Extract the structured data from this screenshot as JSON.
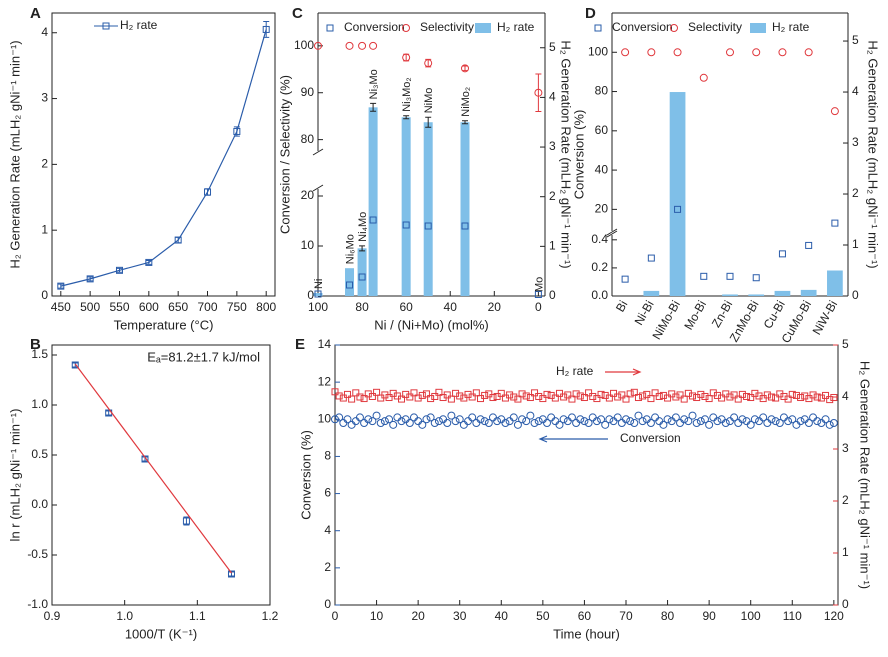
{
  "chart_data": [
    {
      "type": "line",
      "panel": "A",
      "xlabel": "Temperature (°C)",
      "ylabel": "H₂ Generation Rate (mLH₂ gNi⁻¹ min⁻¹)",
      "x": [
        450,
        500,
        550,
        600,
        650,
        700,
        750,
        800
      ],
      "series": [
        {
          "name": "H₂ rate",
          "color": "#2a5caa",
          "mark": "square",
          "line": true,
          "values": [
            0.15,
            0.26,
            0.39,
            0.51,
            0.85,
            1.58,
            2.5,
            4.05
          ],
          "errors": [
            0.03,
            0.03,
            0.03,
            0.03,
            0.04,
            0.05,
            0.07,
            0.12
          ]
        }
      ],
      "xlim": [
        435,
        815
      ],
      "xticks": [
        450,
        500,
        550,
        600,
        650,
        700,
        750,
        800
      ],
      "ylim": [
        0,
        4.3
      ],
      "yticks": [
        0,
        1,
        2,
        3,
        4
      ]
    },
    {
      "type": "scatter",
      "panel": "B",
      "xlabel": "1000/T (K⁻¹)",
      "ylabel": "ln r (mLH₂ gNi⁻¹ min⁻¹)",
      "annotation": "Eₐ=81.2±1.7 kJ/mol",
      "x": [
        0.932,
        0.978,
        1.028,
        1.085,
        1.147
      ],
      "series": [
        {
          "color": "#2a5caa",
          "mark": "square",
          "values": [
            1.4,
            0.92,
            0.46,
            -0.16,
            -0.69
          ],
          "errors": [
            0.02,
            0.02,
            0.02,
            0.04,
            0.02
          ]
        }
      ],
      "fit": {
        "color": "#e0393e",
        "x": [
          0.932,
          1.147
        ],
        "values": [
          1.41,
          -0.68
        ]
      },
      "xlim": [
        0.9,
        1.2
      ],
      "xticks": [
        0.9,
        {
          "value": 1.0,
          "label": "1.0"
        },
        1.1,
        {
          "value": 1.2,
          "label": "1.2"
        }
      ],
      "ylim": [
        -1.0,
        1.6
      ],
      "yticks": [
        {
          "value": -1.0,
          "label": "-1.0"
        },
        -0.5,
        {
          "value": 0.0,
          "label": "0.0"
        },
        0.5,
        {
          "value": 1.0,
          "label": "1.0"
        },
        1.5
      ]
    },
    {
      "type": "bar",
      "panel": "C",
      "xlabel": "Ni / (Ni+Mo) (mol%)",
      "ylabel": "Conversion / Selectivity (%)",
      "y2label": "H₂ Generation Rate (mLH₂ gNi⁻¹ min⁻¹)",
      "x": [
        100,
        85.7,
        80,
        75,
        60,
        50,
        33.3,
        0
      ],
      "point_labels": [
        "Ni",
        "Ni₆Mo",
        "Ni₄Mo",
        "Ni₃Mo",
        "Ni₃Mo₂",
        "NiMo",
        "NiMo₂",
        "Mo"
      ],
      "series": [
        {
          "name": "Conversion",
          "color": "#2a5caa",
          "mark": "square",
          "values": [
            0.4,
            2.2,
            3.8,
            15.2,
            14.2,
            14.0,
            14.0,
            0.3
          ]
        },
        {
          "name": "Selectivity",
          "color": "#e0393e",
          "mark": "circle",
          "values": [
            100,
            100,
            100,
            100,
            97.5,
            96.3,
            95.2,
            90
          ],
          "errors": [
            null,
            null,
            null,
            null,
            0.7,
            0.8,
            0.5,
            4
          ]
        },
        {
          "name": "H₂ rate",
          "color": "#7fbfe8",
          "mark": "bar",
          "axis": "y2",
          "values": [
            0.06,
            0.56,
            0.96,
            3.8,
            3.6,
            3.5,
            3.5,
            0
          ],
          "errors": [
            null,
            null,
            0.05,
            0.08,
            0.03,
            0.1,
            0.03,
            null
          ]
        }
      ],
      "xlim": [
        100,
        -3
      ],
      "xticks": [
        100,
        80,
        60,
        40,
        20,
        0
      ],
      "ylim": [
        0,
        107
      ],
      "axis_break": [
        21,
        78
      ],
      "yticks": [
        0,
        10,
        20,
        80,
        90,
        100
      ],
      "y2lim": [
        0,
        5.7
      ],
      "y2ticks": [
        0,
        1,
        2,
        3,
        4,
        5
      ]
    },
    {
      "type": "bar",
      "panel": "D",
      "ylabel": "Conversion  (%)",
      "y2label": "H₂ Generation Rate (mLH₂ gNi⁻¹ min⁻¹)",
      "categories": [
        "Bi",
        "Ni-Bi",
        "NiMo-Bi",
        "Mo-Bi",
        "Zn-Bi",
        "ZnMo-Bi",
        "Cu-Bi",
        "CuMo-Bi",
        "NiW-Bi"
      ],
      "series": [
        {
          "name": "Conversion",
          "color": "#2a5caa",
          "mark": "square",
          "values": [
            0.12,
            0.27,
            20,
            0.14,
            0.14,
            0.13,
            0.3,
            0.36,
            13
          ]
        },
        {
          "name": "Selectivity",
          "color": "#e0393e",
          "mark": "circle",
          "values": [
            100,
            100,
            100,
            87,
            100,
            100,
            100,
            100,
            70
          ]
        },
        {
          "name": "H₂ rate",
          "color": "#7fbfe8",
          "mark": "bar",
          "axis": "y2",
          "values": [
            0,
            0.1,
            4.0,
            0,
            0.03,
            0.03,
            0.1,
            0.12,
            0.5
          ]
        }
      ],
      "ylim": [
        0,
        120
      ],
      "axis_break": [
        0.42,
        10
      ],
      "yticks": [
        {
          "value": 0.0,
          "label": "0.0"
        },
        0.2,
        0.4,
        20,
        40,
        60,
        80,
        100
      ],
      "y2lim": [
        0,
        5.55
      ],
      "y2ticks": [
        0,
        1,
        2,
        3,
        4,
        5
      ]
    },
    {
      "type": "line",
      "panel": "E",
      "xlabel": "Time (hour)",
      "ylabel": "Conversion (%)",
      "y2label": "H₂ Generation Rate (mLH₂ gNi⁻¹ min⁻¹)",
      "color_axes": true,
      "x": [
        0,
        1,
        2,
        3,
        4,
        5,
        6,
        7,
        8,
        9,
        10,
        11,
        12,
        13,
        14,
        15,
        16,
        17,
        18,
        19,
        20,
        21,
        22,
        23,
        24,
        25,
        26,
        27,
        28,
        29,
        30,
        31,
        32,
        33,
        34,
        35,
        36,
        37,
        38,
        39,
        40,
        41,
        42,
        43,
        44,
        45,
        46,
        47,
        48,
        49,
        50,
        51,
        52,
        53,
        54,
        55,
        56,
        57,
        58,
        59,
        60,
        61,
        62,
        63,
        64,
        65,
        66,
        67,
        68,
        69,
        70,
        71,
        72,
        73,
        74,
        75,
        76,
        77,
        78,
        79,
        80,
        81,
        82,
        83,
        84,
        85,
        86,
        87,
        88,
        89,
        90,
        91,
        92,
        93,
        94,
        95,
        96,
        97,
        98,
        99,
        100,
        101,
        102,
        103,
        104,
        105,
        106,
        107,
        108,
        109,
        110,
        111,
        112,
        113,
        114,
        115,
        116,
        117,
        118,
        119,
        120
      ],
      "series": [
        {
          "name": "H₂ rate",
          "color": "#e0393e",
          "mark": "square",
          "axis": "y2",
          "values": [
            4.1,
            4.02,
            3.98,
            4.05,
            3.96,
            4.08,
            4.0,
            3.97,
            4.06,
            4.01,
            4.09,
            3.98,
            4.04,
            3.99,
            4.07,
            4.02,
            3.96,
            4.05,
            4.0,
            4.08,
            3.98,
            4.03,
            4.06,
            3.97,
            4.01,
            4.09,
            3.99,
            4.04,
            3.96,
            4.07,
            4.02,
            3.98,
            4.05,
            4.0,
            4.08,
            3.97,
            4.03,
            4.06,
            3.99,
            4.01,
            4.07,
            3.98,
            4.04,
            4.0,
            3.96,
            4.06,
            4.02,
            3.99,
            4.08,
            4.01,
            3.97,
            4.05,
            4.03,
            3.98,
            4.07,
            4.0,
            4.04,
            3.96,
            4.06,
            4.02,
            3.99,
            4.08,
            4.01,
            3.97,
            4.05,
            4.03,
            3.98,
            4.07,
            4.0,
            4.04,
            3.96,
            4.06,
            4.09,
            3.99,
            4.02,
            4.05,
            3.97,
            4.08,
            4.01,
            4.03,
            3.98,
            4.06,
            4.0,
            4.04,
            3.96,
            4.07,
            4.02,
            3.99,
            4.05,
            4.01,
            3.97,
            4.08,
            4.03,
            3.98,
            4.06,
            4.0,
            4.04,
            3.96,
            4.05,
            4.01,
            3.99,
            4.07,
            4.02,
            3.97,
            4.04,
            4.0,
            3.98,
            4.06,
            4.01,
            3.96,
            4.05,
            4.03,
            3.99,
            4.02,
            3.97,
            4.04,
            4.0,
            3.98,
            4.03,
            3.95,
            3.99
          ]
        },
        {
          "name": "Conversion",
          "color": "#2a5caa",
          "mark": "circle",
          "values": [
            10.0,
            10.1,
            9.8,
            10.0,
            9.7,
            9.9,
            10.1,
            9.8,
            10.0,
            9.9,
            10.2,
            9.8,
            9.9,
            10.0,
            9.7,
            10.1,
            9.9,
            10.0,
            9.8,
            10.1,
            9.9,
            9.7,
            10.0,
            10.1,
            9.8,
            9.9,
            10.0,
            9.8,
            10.2,
            9.9,
            10.0,
            9.7,
            9.9,
            10.1,
            9.8,
            10.0,
            9.9,
            9.8,
            10.1,
            9.9,
            10.0,
            9.8,
            9.9,
            10.1,
            9.7,
            10.0,
            9.9,
            10.2,
            9.8,
            9.9,
            10.0,
            9.8,
            10.1,
            9.9,
            9.7,
            10.0,
            9.9,
            10.1,
            9.8,
            10.0,
            9.9,
            9.8,
            10.1,
            9.9,
            10.0,
            9.7,
            10.0,
            9.9,
            10.1,
            9.8,
            10.0,
            9.9,
            9.8,
            10.2,
            9.9,
            10.0,
            9.8,
            10.1,
            9.9,
            9.7,
            10.0,
            9.9,
            10.1,
            9.8,
            10.0,
            9.9,
            10.2,
            9.8,
            9.9,
            10.0,
            9.7,
            10.1,
            9.9,
            10.0,
            9.8,
            9.9,
            10.1,
            9.8,
            10.0,
            9.9,
            9.7,
            10.0,
            9.9,
            10.1,
            9.8,
            10.0,
            9.9,
            9.8,
            10.1,
            9.9,
            10.0,
            9.7,
            9.9,
            10.0,
            9.8,
            10.1,
            9.9,
            9.8,
            10.0,
            9.7,
            9.8
          ]
        }
      ],
      "xlim": [
        0,
        121
      ],
      "xticks": [
        0,
        10,
        20,
        30,
        40,
        50,
        60,
        70,
        80,
        90,
        100,
        110,
        120
      ],
      "ylim": [
        0,
        14
      ],
      "yticks": [
        0,
        2,
        4,
        6,
        8,
        10,
        12,
        14
      ],
      "y2lim": [
        0,
        5
      ],
      "y2ticks": [
        0,
        1,
        2,
        3,
        4,
        5
      ]
    }
  ]
}
